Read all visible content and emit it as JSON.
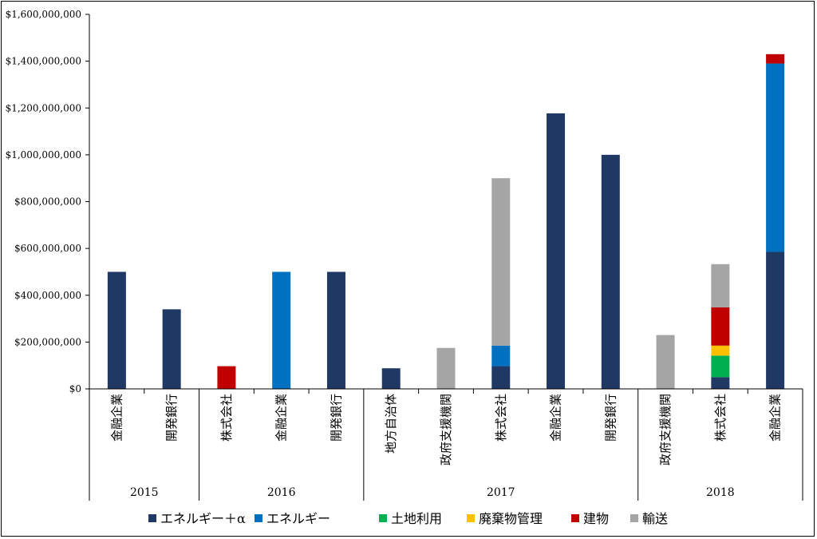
{
  "chart_data": {
    "type": "bar",
    "stacked": true,
    "title": "",
    "xlabel": "",
    "ylabel": "",
    "ylim": [
      0,
      1600000000
    ],
    "y_ticks": [
      0,
      200000000,
      400000000,
      600000000,
      800000000,
      1000000000,
      1200000000,
      1400000000,
      1600000000
    ],
    "y_tick_labels": [
      "$0",
      "$200,000,000",
      "$400,000,000",
      "$600,000,000",
      "$800,000,000",
      "$1,000,000,000",
      "$1,200,000,000",
      "$1,400,000,000",
      "$1,600,000,000"
    ],
    "grid": false,
    "legend_position": "bottom",
    "categories": [
      "金融企業",
      "開発銀行",
      "株式会社",
      "金融企業",
      "開発銀行",
      "地方自治体",
      "政府支援機関",
      "株式会社",
      "金融企業",
      "開発銀行",
      "政府支援機関",
      "株式会社",
      "金融企業"
    ],
    "groups": [
      {
        "label": "2015",
        "count": 2
      },
      {
        "label": "2016",
        "count": 3
      },
      {
        "label": "2017",
        "count": 5
      },
      {
        "label": "2018",
        "count": 3
      }
    ],
    "series": [
      {
        "name": "エネルギー＋α",
        "color": "#203864",
        "values": [
          500000000,
          340000000,
          0,
          0,
          500000000,
          88000000,
          0,
          97000000,
          1177000000,
          1000000000,
          0,
          50000000,
          585000000
        ]
      },
      {
        "name": "エネルギー",
        "color": "#0070C0",
        "values": [
          0,
          0,
          0,
          500000000,
          0,
          0,
          0,
          88000000,
          0,
          0,
          0,
          0,
          805000000
        ]
      },
      {
        "name": "土地利用",
        "color": "#00B050",
        "values": [
          0,
          0,
          0,
          0,
          0,
          0,
          0,
          0,
          0,
          0,
          0,
          92000000,
          0
        ]
      },
      {
        "name": "廃棄物管理",
        "color": "#FFC000",
        "values": [
          0,
          0,
          0,
          0,
          0,
          0,
          0,
          0,
          0,
          0,
          0,
          43000000,
          0
        ]
      },
      {
        "name": "建物",
        "color": "#C00000",
        "values": [
          0,
          0,
          97000000,
          0,
          0,
          0,
          0,
          0,
          0,
          0,
          0,
          163000000,
          40000000
        ]
      },
      {
        "name": "輸送",
        "color": "#A5A5A5",
        "values": [
          0,
          0,
          0,
          0,
          0,
          0,
          175000000,
          715000000,
          0,
          0,
          230000000,
          185000000,
          0
        ]
      }
    ]
  }
}
